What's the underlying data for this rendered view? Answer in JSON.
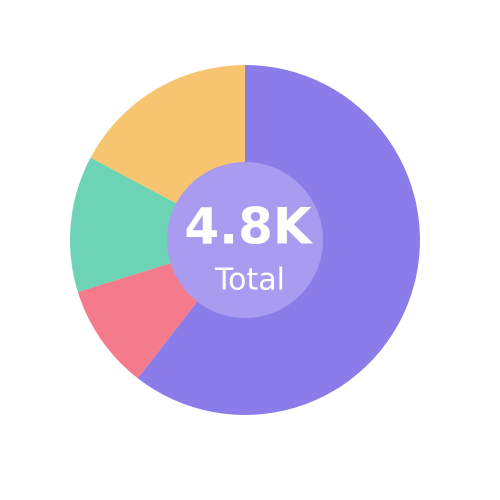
{
  "chart_data": {
    "type": "pie",
    "values": [
      60.5,
      9.7,
      12.6,
      17.2
    ],
    "colors": [
      "#8a7de9",
      "#f47b8b",
      "#6dd3b5",
      "#f7c570"
    ],
    "center_color": "#a99bf0",
    "center_label": "4.8K",
    "center_sublabel": "Total"
  }
}
